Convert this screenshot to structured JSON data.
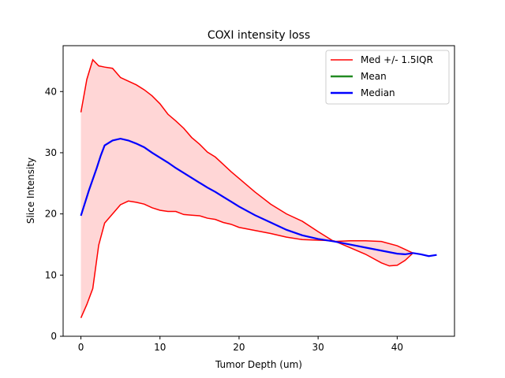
{
  "chart_data": {
    "type": "line",
    "title": "COXI intensity loss",
    "xlabel": "Tumor Depth (um)",
    "ylabel": "Slice Intensity",
    "xlim": [
      -2.25,
      47.25
    ],
    "ylim": [
      0,
      47.5
    ],
    "xticks": [
      0,
      10,
      20,
      30,
      40
    ],
    "yticks": [
      0,
      10,
      20,
      30,
      40
    ],
    "legend_position": "top-right",
    "grid": false,
    "colors": {
      "upper": "#ff0000",
      "lower": "#ff0000",
      "mean": "#228b22",
      "median": "#0000ff",
      "band": "#ffcccc"
    },
    "series": [
      {
        "name": "Med +/- 1.5IQR",
        "role": "upper",
        "x": [
          0,
          0.75,
          1.5,
          2.25,
          3,
          4,
          5,
          6,
          7,
          8,
          9,
          10,
          11,
          12,
          13,
          14,
          15,
          16,
          17,
          18,
          19,
          20,
          22,
          24,
          26,
          28,
          30,
          32,
          34,
          36,
          38,
          40,
          41,
          41.5,
          42
        ],
        "values": [
          36.6,
          42.0,
          45.2,
          44.2,
          44.0,
          43.8,
          42.3,
          41.7,
          41.1,
          40.3,
          39.3,
          38.0,
          36.3,
          35.2,
          34.0,
          32.5,
          31.4,
          30.1,
          29.3,
          28.1,
          26.9,
          25.8,
          23.6,
          21.6,
          20.0,
          18.8,
          17.1,
          15.5,
          15.6,
          15.6,
          15.5,
          14.8,
          14.2,
          13.9,
          13.6
        ]
      },
      {
        "name": "",
        "role": "lower",
        "x": [
          0,
          0.75,
          1.5,
          2.25,
          3,
          4,
          5,
          6,
          7,
          8,
          9,
          10,
          11,
          12,
          13,
          14,
          15,
          16,
          17,
          18,
          19,
          20,
          22,
          24,
          26,
          28,
          30,
          32,
          34,
          36,
          38,
          39,
          40,
          41,
          41.5,
          42
        ],
        "values": [
          3.0,
          5.2,
          7.8,
          14.9,
          18.5,
          20.0,
          21.5,
          22.1,
          21.9,
          21.6,
          21.0,
          20.6,
          20.4,
          20.4,
          19.9,
          19.8,
          19.7,
          19.3,
          19.1,
          18.6,
          18.3,
          17.8,
          17.3,
          16.8,
          16.2,
          15.8,
          15.7,
          15.6,
          14.5,
          13.4,
          12.0,
          11.5,
          11.6,
          12.4,
          13.0,
          13.6
        ]
      },
      {
        "name": "Mean",
        "role": "mean",
        "x": [],
        "values": []
      },
      {
        "name": "Median",
        "role": "median",
        "x": [
          0,
          1,
          2,
          2.5,
          3,
          4,
          5,
          6,
          7,
          8,
          9,
          10,
          11,
          12,
          13,
          14,
          15,
          16,
          17,
          18,
          19,
          20,
          22,
          24,
          26,
          28,
          30,
          32,
          34,
          36,
          38,
          40,
          41,
          42,
          43,
          44,
          45
        ],
        "values": [
          19.7,
          23.8,
          27.5,
          29.5,
          31.2,
          32.0,
          32.3,
          32.0,
          31.5,
          30.9,
          30.0,
          29.2,
          28.4,
          27.5,
          26.7,
          25.9,
          25.1,
          24.3,
          23.6,
          22.8,
          22.0,
          21.2,
          19.8,
          18.6,
          17.4,
          16.5,
          15.9,
          15.5,
          15.0,
          14.5,
          14.0,
          13.5,
          13.4,
          13.6,
          13.4,
          13.1,
          13.3
        ]
      }
    ]
  }
}
